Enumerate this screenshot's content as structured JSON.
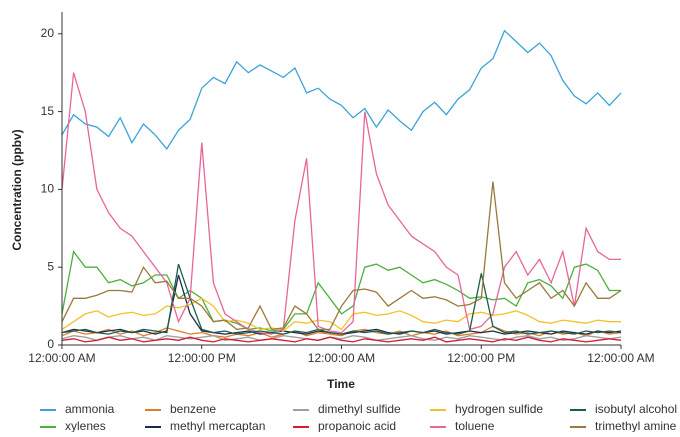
{
  "chart_data": {
    "type": "line",
    "x_label": "Time",
    "y_label": "Concentration (ppbv)",
    "x": [
      0,
      1,
      2,
      3,
      4,
      5,
      6,
      7,
      8,
      9,
      10,
      11,
      12,
      13,
      14,
      15,
      16,
      17,
      18,
      19,
      20,
      21,
      22,
      23,
      24,
      25,
      26,
      27,
      28,
      29,
      30,
      31,
      32,
      33,
      34,
      35,
      36,
      37,
      38,
      39,
      40,
      41,
      42,
      43,
      44,
      45,
      46,
      47,
      48
    ],
    "xlim": [
      0,
      48
    ],
    "xticks": [
      {
        "value": 0,
        "label": "12:00:00 AM"
      },
      {
        "value": 12,
        "label": "12:00:00 PM"
      },
      {
        "value": 24,
        "label": "12:00:00 AM"
      },
      {
        "value": 36,
        "label": "12:00:00 PM"
      },
      {
        "value": 48,
        "label": "12:00:00 AM"
      }
    ],
    "ylim": [
      0,
      21.4
    ],
    "yticks": [
      0,
      5,
      10,
      15,
      20
    ],
    "series": [
      {
        "name": "ammonia",
        "color": "#3ba3d8",
        "values": [
          13.5,
          14.8,
          14.2,
          14,
          13.4,
          14.6,
          13,
          14.2,
          13.5,
          12.6,
          13.8,
          14.5,
          16.5,
          17.2,
          16.8,
          18.2,
          17.5,
          18,
          17.6,
          17.2,
          17.8,
          16.2,
          16.5,
          15.8,
          15.4,
          14.6,
          15.2,
          14,
          15.1,
          14.4,
          13.8,
          15,
          15.6,
          14.8,
          15.8,
          16.4,
          17.8,
          18.4,
          20.2,
          19.5,
          18.8,
          19.4,
          18.6,
          17,
          16,
          15.5,
          16.2,
          15.4,
          16.2
        ]
      },
      {
        "name": "xylenes",
        "color": "#4caf3e",
        "values": [
          2,
          6,
          5,
          5,
          4,
          4.2,
          3.8,
          4,
          4.5,
          4.5,
          3,
          3.5,
          3,
          1.5,
          1.6,
          1.4,
          1,
          1.1,
          0.9,
          1,
          2,
          2,
          4,
          3,
          2,
          2.5,
          5,
          5.2,
          4.8,
          5,
          4.5,
          4,
          4.2,
          3.9,
          3.5,
          3,
          3.1,
          2.9,
          3,
          2.5,
          4,
          4.2,
          3.8,
          3,
          5,
          5.2,
          4.8,
          3.5,
          3.5
        ]
      },
      {
        "name": "benzene",
        "color": "#e07b2a",
        "values": [
          0.6,
          0.9,
          0.7,
          0.8,
          1.0,
          0.7,
          0.9,
          0.6,
          0.8,
          1.1,
          0.9,
          0.7,
          0.8,
          0.6,
          0.5,
          0.7,
          0.6,
          0.8,
          0.5,
          0.7,
          0.9,
          0.6,
          0.8,
          0.7,
          0.6,
          0.9,
          1.0,
          0.8,
          0.7,
          0.9,
          0.6,
          0.8,
          0.7,
          0.9,
          0.6,
          0.7,
          0.8,
          1.2,
          0.9,
          0.7,
          0.8,
          0.6,
          0.9,
          0.7,
          0.8,
          0.6,
          0.9,
          0.7,
          0.8
        ]
      },
      {
        "name": "methyl mercaptan",
        "color": "#1a2a4a",
        "values": [
          0.8,
          1.0,
          0.9,
          0.8,
          0.9,
          1.0,
          0.8,
          0.9,
          0.7,
          0.9,
          4.5,
          2,
          0.9,
          0.8,
          0.7,
          0.8,
          0.9,
          0.7,
          0.8,
          0.9,
          0.8,
          0.7,
          0.9,
          0.8,
          0.7,
          0.8,
          0.9,
          1.0,
          0.8,
          0.7,
          0.9,
          0.8,
          0.9,
          0.7,
          0.8,
          0.9,
          0.8,
          0.9,
          0.7,
          0.8,
          0.9,
          0.8,
          0.7,
          0.9,
          0.8,
          0.7,
          0.9,
          0.8,
          0.9
        ]
      },
      {
        "name": "dimethyl sulfide",
        "color": "#a0a0a0",
        "values": [
          0.4,
          0.6,
          0.5,
          0.3,
          0.5,
          0.6,
          0.4,
          0.5,
          0.3,
          0.6,
          0.5,
          0.4,
          0.5,
          0.6,
          0.3,
          0.4,
          0.5,
          0.3,
          0.4,
          0.6,
          0.5,
          0.4,
          0.3,
          0.5,
          0.4,
          0.6,
          0.5,
          0.3,
          0.4,
          0.5,
          0.6,
          0.4,
          0.3,
          0.5,
          0.4,
          0.6,
          0.5,
          0.4,
          0.3,
          0.5,
          0.6,
          0.4,
          0.5,
          0.3,
          0.4,
          0.6,
          0.5,
          0.4,
          0.5
        ]
      },
      {
        "name": "propanoic acid",
        "color": "#d0202e",
        "values": [
          0.3,
          0.4,
          0.2,
          0.3,
          0.5,
          0.3,
          0.4,
          0.2,
          0.3,
          0.4,
          0.3,
          0.5,
          0.3,
          0.2,
          0.4,
          0.3,
          0.2,
          0.3,
          0.4,
          0.3,
          0.2,
          0.4,
          0.3,
          0.5,
          0.3,
          0.2,
          0.4,
          0.3,
          0.2,
          0.3,
          0.4,
          0.3,
          0.5,
          0.2,
          0.3,
          0.4,
          0.3,
          0.2,
          0.4,
          0.3,
          0.5,
          0.3,
          0.2,
          0.4,
          0.3,
          0.2,
          0.3,
          0.4,
          0.3
        ]
      },
      {
        "name": "hydrogen sulfide",
        "color": "#f2c12e",
        "values": [
          1,
          1.5,
          2,
          2.2,
          1.8,
          2,
          2.1,
          1.9,
          2,
          2.5,
          2.4,
          2.6,
          3,
          2.5,
          1.5,
          1.6,
          1.4,
          1,
          1.1,
          0.9,
          1.5,
          1.4,
          1.6,
          1.5,
          1,
          2,
          2.1,
          1.9,
          2,
          2.2,
          1.9,
          1.5,
          1.4,
          1.6,
          1.5,
          2,
          2.1,
          1.9,
          2,
          2.2,
          1.9,
          1.5,
          1.4,
          1.6,
          1.5,
          1.4,
          1.6,
          1.5,
          1.5
        ]
      },
      {
        "name": "toluene",
        "color": "#e8659a",
        "values": [
          10,
          17.5,
          15,
          10,
          8.5,
          7.5,
          7,
          6,
          5,
          4,
          1.5,
          3,
          13,
          4,
          2,
          1.5,
          1,
          0.8,
          0.7,
          1,
          8,
          12,
          1.2,
          0.9,
          0.8,
          1.5,
          15,
          11,
          9,
          8,
          7,
          6.5,
          6,
          5,
          4.5,
          1,
          1.2,
          2,
          5,
          6,
          4.5,
          5.5,
          4,
          6,
          2.5,
          7.5,
          6,
          5.5,
          5.5
        ]
      },
      {
        "name": "isobutyl alcohol",
        "color": "#1a5e4a",
        "values": [
          0.8,
          0.9,
          1.0,
          0.8,
          0.7,
          0.9,
          0.8,
          1.0,
          0.9,
          0.8,
          5.2,
          3,
          1,
          0.8,
          0.9,
          0.7,
          0.8,
          0.9,
          0.8,
          0.7,
          0.9,
          0.8,
          1.0,
          0.8,
          0.7,
          0.9,
          0.8,
          0.9,
          0.7,
          0.8,
          0.9,
          0.8,
          1.0,
          0.8,
          0.7,
          0.9,
          4.6,
          1.2,
          0.8,
          0.9,
          0.7,
          0.8,
          0.9,
          0.8,
          0.7,
          0.9,
          0.8,
          0.9,
          0.8
        ]
      },
      {
        "name": "trimethyl amine",
        "color": "#9a7a3a",
        "values": [
          1.5,
          3,
          3,
          3.2,
          3.5,
          3.5,
          3.4,
          5,
          4,
          4.1,
          3,
          3,
          2.5,
          1.5,
          1.6,
          1,
          1.1,
          2.5,
          1,
          1.1,
          2.5,
          2,
          1,
          1,
          2.5,
          3.5,
          3.6,
          3.4,
          2.5,
          3,
          3.5,
          3,
          3.1,
          2.9,
          2.5,
          2.6,
          3,
          10.5,
          4,
          3,
          3.5,
          4,
          3,
          3.5,
          2.5,
          4,
          3,
          3,
          3.5
        ]
      }
    ],
    "legend": "bottom"
  }
}
